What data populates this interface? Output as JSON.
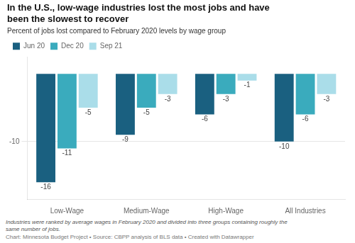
{
  "chart_data": {
    "type": "bar",
    "title": "In the U.S., low-wage industries lost the most jobs and have\nbeen the slowest to recover",
    "subtitle": "Percent of jobs lost compared to February 2020 levels by wage group",
    "footnote": "Industries were ranked by average wages in February 2020 and divided into three groups containing roughly the\nsame number of jobs.",
    "source": "Chart: Minnesota Budget Project • Source: CBPP analysis of BLS data • Created with Datawrapper",
    "categories": [
      "Low-Wage",
      "Medium-Wage",
      "High-Wage",
      "All Industries"
    ],
    "series": [
      {
        "name": "Jun 20",
        "color": "#1a6080",
        "values": [
          -16,
          -9,
          -6,
          -10
        ]
      },
      {
        "name": "Dec 20",
        "color": "#3aabbd",
        "values": [
          -11,
          -5,
          -3,
          -6
        ]
      },
      {
        "name": "Sep 21",
        "color": "#aadde9",
        "values": [
          -5,
          -3,
          -1,
          -3
        ]
      }
    ],
    "ylim": [
      -18.5,
      2.5
    ],
    "yticks": [
      -10
    ],
    "grid": true,
    "legend": "top",
    "data_labels": true
  }
}
